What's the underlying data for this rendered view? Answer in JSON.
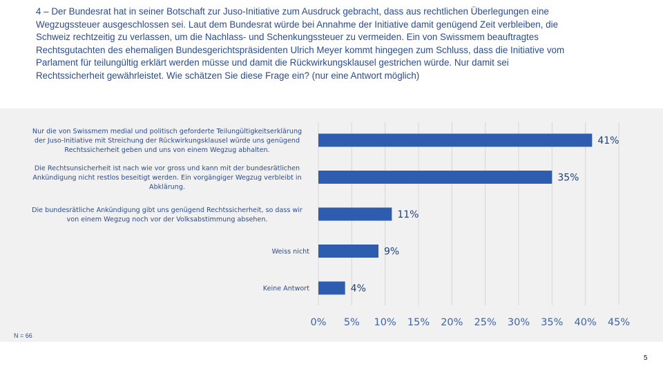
{
  "question": {
    "text": "4 – Der Bundesrat hat in seiner Botschaft zur Juso-Initiative zum Ausdruck gebracht, dass aus rechtlichen Überlegungen eine Wegzugssteuer ausgeschlossen sei. Laut dem Bundesrat würde bei Annahme der Initiative damit genügend Zeit verbleiben, die Schweiz rechtzeitig zu verlassen, um die Nachlass- und Schenkungssteuer zu vermeiden. Ein von Swissmem beauftragtes Rechtsgutachten des ehemaligen Bundesgerichtspräsidenten Ulrich Meyer kommt hingegen zum Schluss, dass die Initiative vom Parlament für teilungültig erklärt werden müsse und damit die Rückwirkungsklausel gestrichen würde. Nur damit sei Rechtssicherheit gewährleistet. Wie schätzen Sie diese Frage ein? (nur eine Antwort möglich)"
  },
  "footnote": "N = 66",
  "page_number": "5",
  "colors": {
    "bar": "#2e5daf",
    "text": "#2a4c8e",
    "axis_text": "#3c64a8",
    "panel": "#f1f1f1"
  },
  "chart_data": {
    "type": "bar",
    "orientation": "horizontal",
    "categories": [
      [
        "Nur die von Swissmem medial und politisch geforderte Teilungültigkeitserklärung",
        "der Juso-Initiative mit Streichung der Rückwirkungsklausel würde uns genügend",
        "Rechtssicherheit geben und uns von einem Wegzug abhalten."
      ],
      [
        "Die Rechtsunsicherheit ist nach wie vor gross und kann mit der bundesrätlichen",
        "Ankündigung nicht restlos beseitigt werden. Ein vorgängiger Wegzug verbleibt in",
        "Abklärung."
      ],
      [
        "Die bundesrätliche Ankündigung gibt uns genügend Rechtssicherheit, so dass wir",
        "von einem Wegzug noch vor der Volksabstimmung absehen."
      ],
      [
        "Weiss nicht"
      ],
      [
        "Keine Antwort"
      ]
    ],
    "values": [
      41,
      35,
      11,
      9,
      4
    ],
    "data_labels": [
      "41%",
      "35%",
      "11%",
      "9%",
      "4%"
    ],
    "xlim": [
      0,
      45
    ],
    "x_ticks": [
      0,
      5,
      10,
      15,
      20,
      25,
      30,
      35,
      40,
      45
    ],
    "x_tick_labels": [
      "0%",
      "5%",
      "10%",
      "15%",
      "20%",
      "25%",
      "30%",
      "35%",
      "40%",
      "45%"
    ],
    "grid": true
  }
}
